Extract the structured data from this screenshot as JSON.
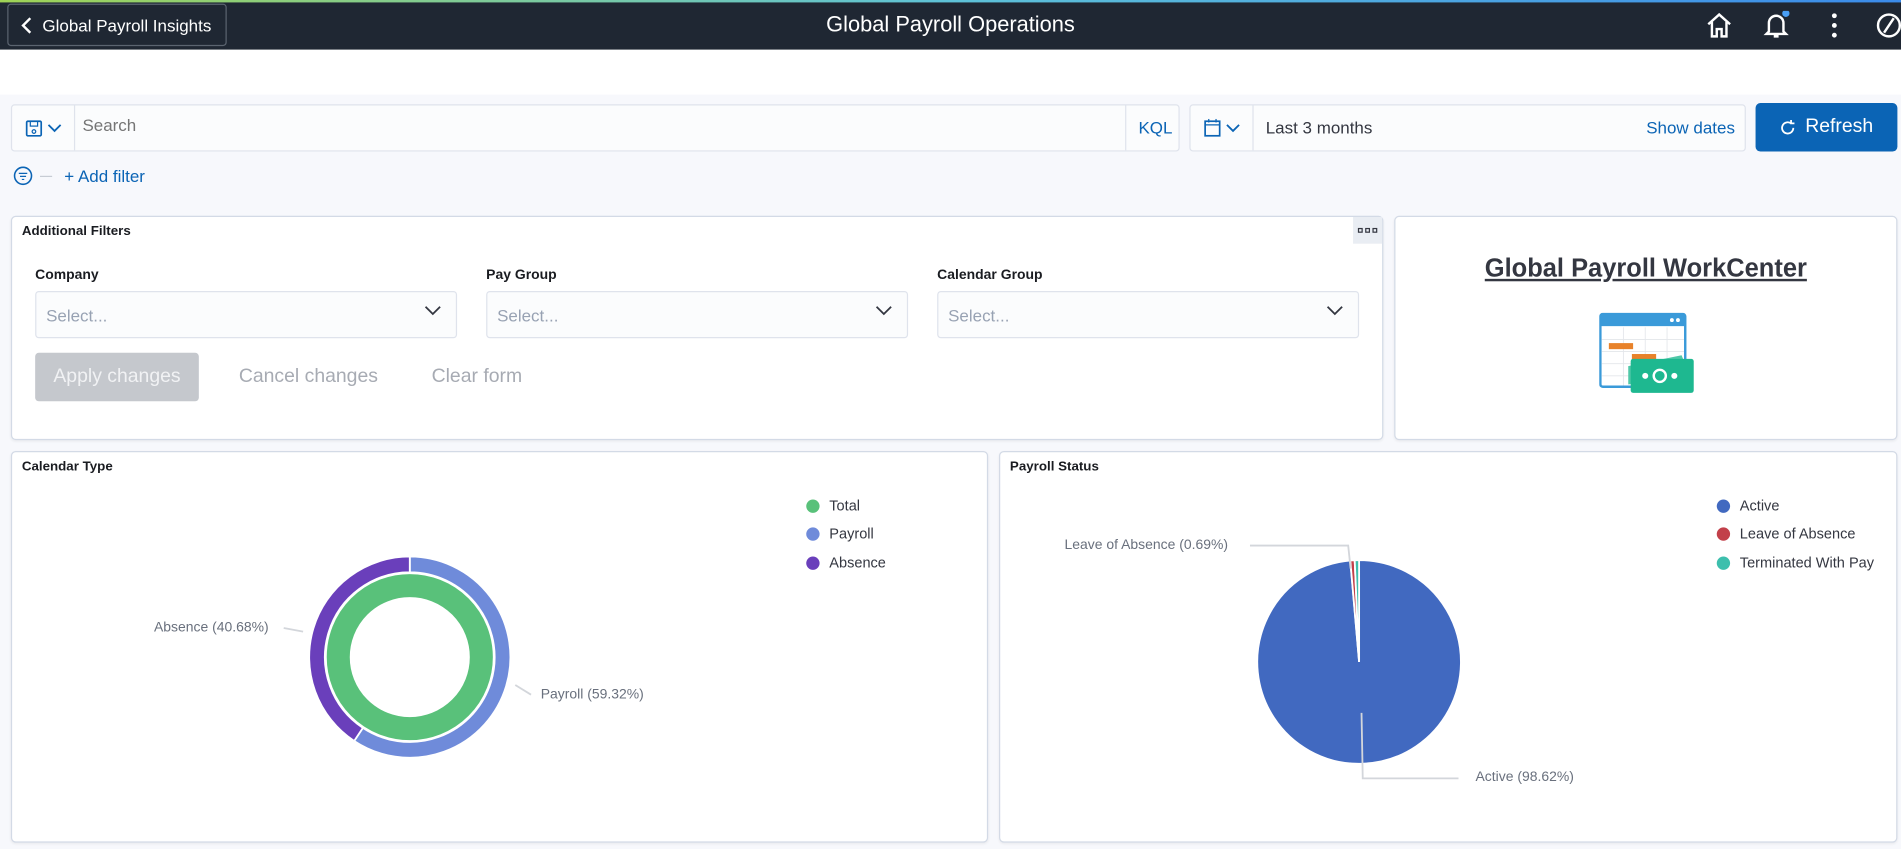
{
  "header": {
    "back_label": "Global Payroll Insights",
    "title": "Global Payroll Operations",
    "icons": [
      "home-icon",
      "bell-icon",
      "kebab-menu-icon",
      "compass-icon"
    ],
    "notification_dot_color": "#4a9ff5"
  },
  "query": {
    "search_placeholder": "Search",
    "kql_label": "KQL",
    "date_range": "Last 3 months",
    "show_dates_label": "Show dates",
    "refresh_label": "Refresh",
    "add_filter_label": "+ Add filter"
  },
  "filters": {
    "title": "Additional Filters",
    "fields": [
      {
        "label": "Company",
        "placeholder": "Select..."
      },
      {
        "label": "Pay Group",
        "placeholder": "Select..."
      },
      {
        "label": "Calendar Group",
        "placeholder": "Select..."
      }
    ],
    "apply_label": "Apply changes",
    "cancel_label": "Cancel changes",
    "clear_label": "Clear form"
  },
  "workcenter": {
    "title": "Global Payroll WorkCenter"
  },
  "chart_data": [
    {
      "type": "pie",
      "title": "Calendar Type",
      "variant": "nested-donut",
      "legend": [
        "Total",
        "Payroll",
        "Absence"
      ],
      "legend_position": "top-right",
      "inner": {
        "name": "Total",
        "values": [
          100
        ],
        "colors": [
          "#59c17a"
        ]
      },
      "outer": {
        "slices": [
          {
            "name": "Payroll",
            "value": 59.32,
            "label": "Payroll (59.32%)",
            "color": "#6f8bda"
          },
          {
            "name": "Absence",
            "value": 40.68,
            "label": "Absence (40.68%)",
            "color": "#6a3fbb"
          }
        ]
      },
      "legend_colors": [
        "#59c17a",
        "#6f8bda",
        "#6a3fbb"
      ]
    },
    {
      "type": "pie",
      "title": "Payroll Status",
      "legend": [
        "Active",
        "Leave of Absence",
        "Terminated With Pay"
      ],
      "legend_position": "top-right",
      "slices": [
        {
          "name": "Active",
          "value": 98.62,
          "label": "Active (98.62%)",
          "color": "#4169c0"
        },
        {
          "name": "Leave of Absence",
          "value": 0.69,
          "label": "Leave of Absence (0.69%)",
          "color": "#c2404a"
        },
        {
          "name": "Terminated With Pay",
          "value": 0.69,
          "color": "#3dbfad"
        }
      ]
    }
  ]
}
